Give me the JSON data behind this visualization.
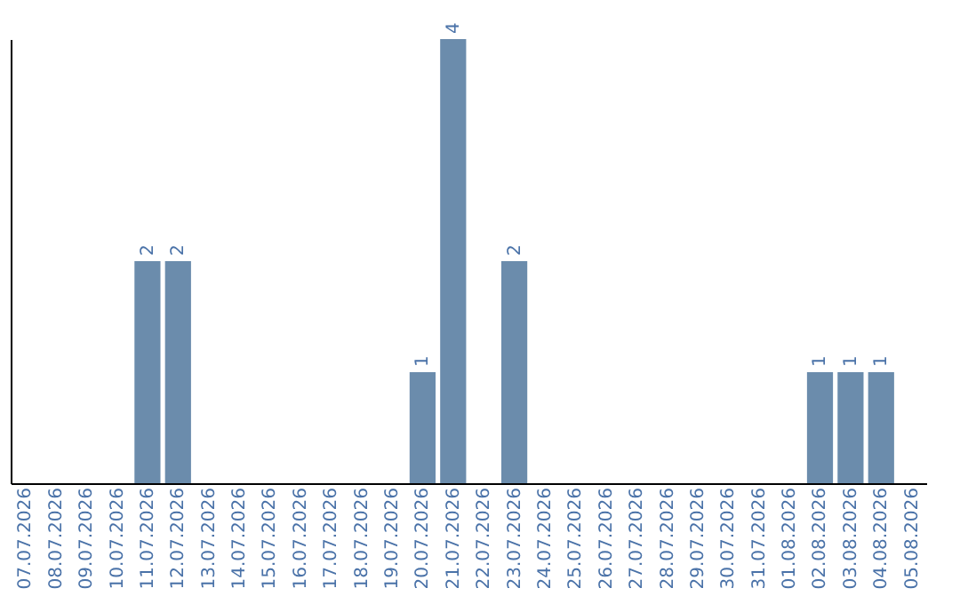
{
  "chart_data": {
    "type": "bar",
    "categories": [
      "07.07.2026",
      "08.07.2026",
      "09.07.2026",
      "10.07.2026",
      "11.07.2026",
      "12.07.2026",
      "13.07.2026",
      "14.07.2026",
      "15.07.2026",
      "16.07.2026",
      "17.07.2026",
      "18.07.2026",
      "19.07.2026",
      "20.07.2026",
      "21.07.2026",
      "22.07.2026",
      "23.07.2026",
      "24.07.2026",
      "25.07.2026",
      "26.07.2026",
      "27.07.2026",
      "28.07.2026",
      "29.07.2026",
      "30.07.2026",
      "31.07.2026",
      "01.08.2026",
      "02.08.2026",
      "03.08.2026",
      "04.08.2026",
      "05.08.2026"
    ],
    "values": [
      0,
      0,
      0,
      0,
      2,
      2,
      0,
      0,
      0,
      0,
      0,
      0,
      0,
      1,
      4,
      0,
      2,
      0,
      0,
      0,
      0,
      0,
      0,
      0,
      0,
      0,
      1,
      1,
      1,
      0
    ],
    "value_labels": [
      null,
      null,
      null,
      null,
      "2",
      "2",
      null,
      null,
      null,
      null,
      null,
      null,
      null,
      "1",
      "4",
      null,
      "2",
      null,
      null,
      null,
      null,
      null,
      null,
      null,
      null,
      null,
      "1",
      "1",
      "1",
      null
    ],
    "color": "#6b8cac",
    "tick_labels": "x",
    "grid": false
  }
}
